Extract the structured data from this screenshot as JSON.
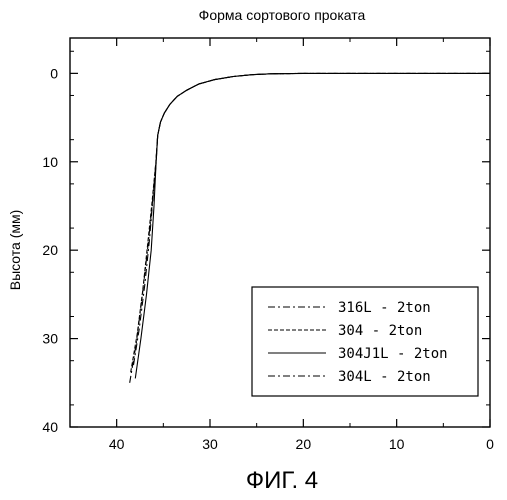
{
  "chart_data": {
    "type": "line",
    "title": "Форма сортового проката",
    "ylabel": "Высота (мм)",
    "xlabel": "",
    "caption": "ФИГ. 4",
    "xlim": [
      45,
      0
    ],
    "ylim": [
      40,
      -4
    ],
    "x_ticks": [
      40,
      30,
      20,
      10,
      0
    ],
    "y_ticks": [
      0,
      10,
      20,
      30,
      40
    ],
    "x_reversed": true,
    "y_reversed": true,
    "grid": false,
    "legend_position": "bottom-right",
    "series": [
      {
        "name": "316L - 2ton",
        "dash": "dashdot",
        "x": [
          38.2,
          37.6,
          37.0,
          36.5,
          36.1,
          35.8,
          35.6,
          35.3,
          34.9,
          34.3,
          33.5,
          32.5,
          31.2,
          29.5,
          27.5,
          25.5,
          23.5,
          20.0,
          15.0,
          10.0,
          5.0,
          0.0
        ],
        "y": [
          33.0,
          29.0,
          24.0,
          19.0,
          14.0,
          10.0,
          7.0,
          5.5,
          4.5,
          3.5,
          2.6,
          1.9,
          1.2,
          0.7,
          0.35,
          0.15,
          0.05,
          0.0,
          0.0,
          0.0,
          0.0,
          0.0
        ]
      },
      {
        "name": "304 - 2ton",
        "dash": "dashed",
        "x": [
          38.5,
          37.8,
          37.2,
          36.7,
          36.2,
          35.8,
          35.6,
          35.3,
          34.9,
          34.3,
          33.5,
          32.5,
          31.2,
          29.5,
          27.5,
          25.5,
          23.5,
          20.0,
          15.0,
          10.0,
          5.0,
          0.0
        ],
        "y": [
          33.8,
          29.5,
          24.5,
          19.5,
          14.5,
          10.0,
          7.0,
          5.5,
          4.5,
          3.5,
          2.6,
          1.9,
          1.2,
          0.7,
          0.35,
          0.15,
          0.05,
          0.0,
          0.0,
          0.0,
          0.0,
          0.0
        ]
      },
      {
        "name": "304J1L - 2ton",
        "dash": "solid",
        "x": [
          38.0,
          37.4,
          36.8,
          36.3,
          36.0,
          35.8,
          35.6,
          35.3,
          34.9,
          34.3,
          33.5,
          32.5,
          31.2,
          29.5,
          27.5,
          25.5,
          23.5,
          20.0,
          15.0,
          10.0,
          5.0,
          0.0
        ],
        "y": [
          34.5,
          30.0,
          25.0,
          20.0,
          15.0,
          10.5,
          7.0,
          5.5,
          4.5,
          3.5,
          2.6,
          1.9,
          1.2,
          0.7,
          0.35,
          0.15,
          0.05,
          0.0,
          0.0,
          0.0,
          0.0,
          0.0
        ]
      },
      {
        "name": "304L - 2ton",
        "dash": "dashdot",
        "x": [
          38.6,
          37.9,
          37.3,
          36.7,
          36.2,
          35.8,
          35.6,
          35.3,
          34.9,
          34.3,
          33.5,
          32.5,
          31.2,
          29.5,
          27.5,
          25.5,
          23.5,
          20.0,
          15.0,
          10.0,
          5.0,
          0.0
        ],
        "y": [
          35.0,
          30.5,
          25.5,
          20.0,
          15.0,
          10.5,
          7.0,
          5.5,
          4.5,
          3.5,
          2.6,
          1.9,
          1.2,
          0.7,
          0.35,
          0.15,
          0.05,
          0.0,
          0.0,
          0.0,
          0.0,
          0.0
        ]
      }
    ]
  }
}
